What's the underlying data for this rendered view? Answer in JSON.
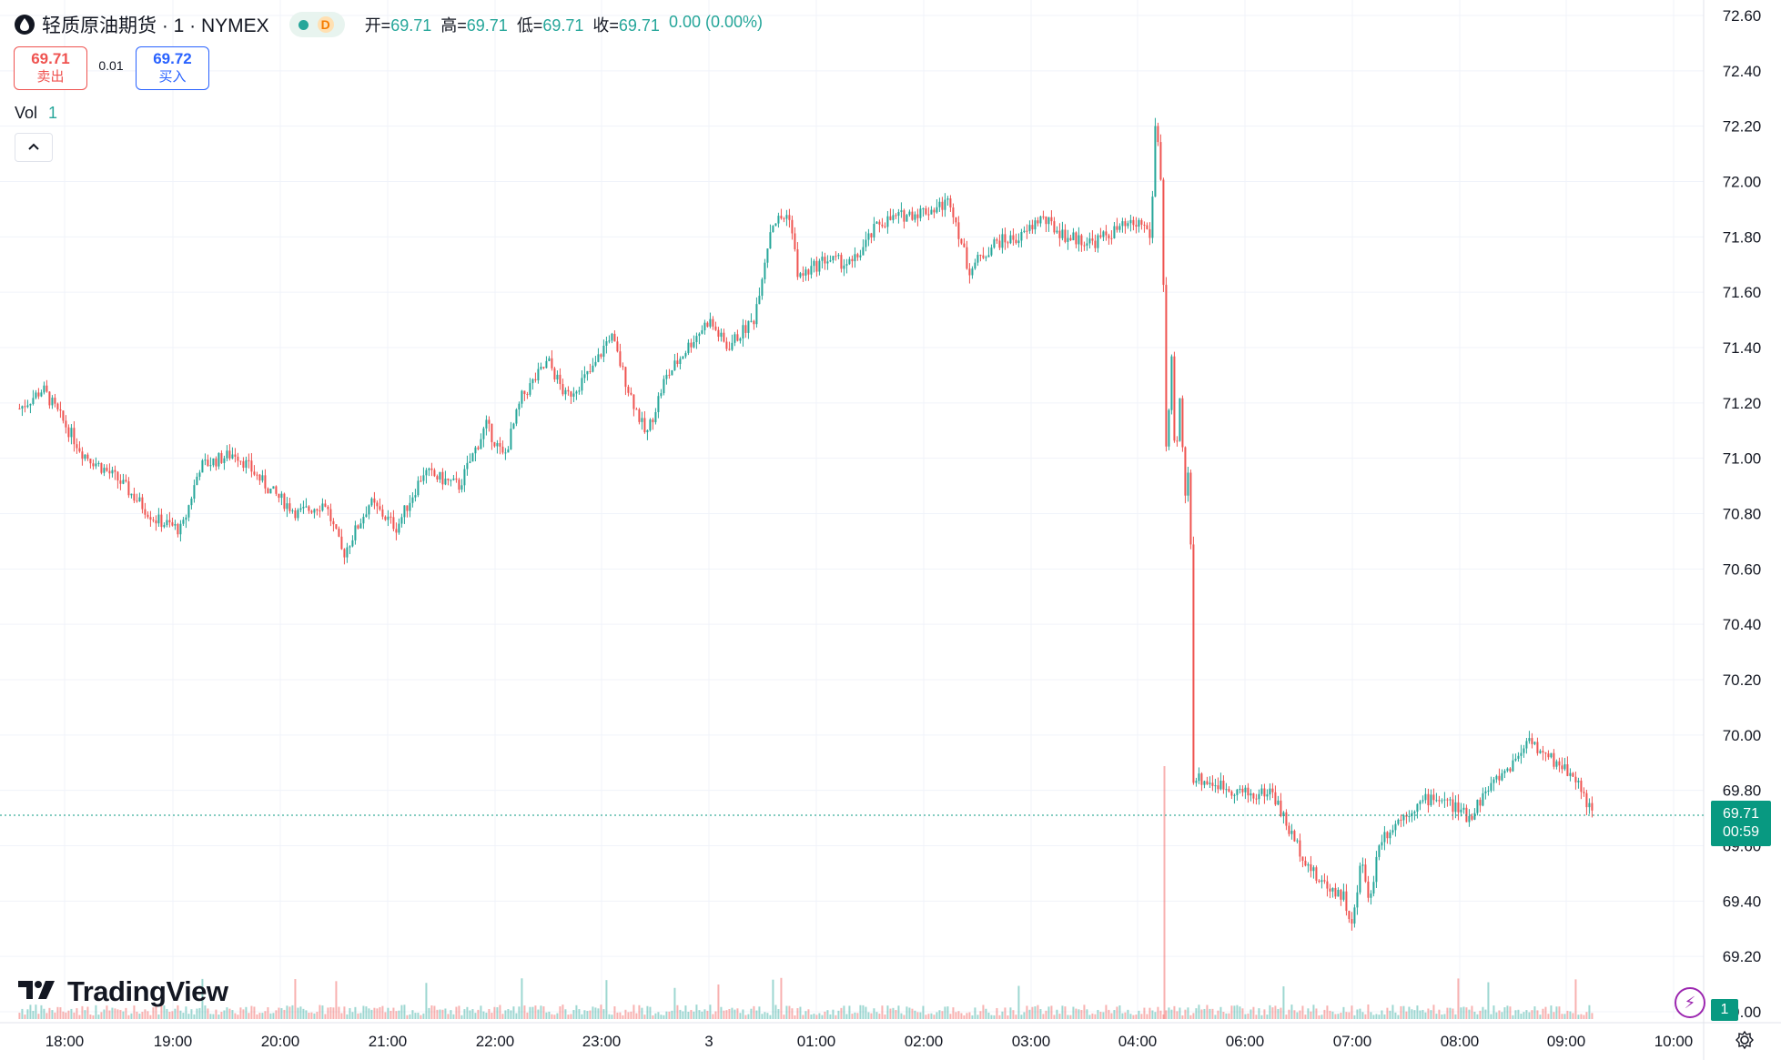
{
  "legend": {
    "symbol": "轻质原油期货 · 1 · NYMEX",
    "badge": "D",
    "open_label": "开=",
    "open": "69.71",
    "high_label": "高=",
    "high": "69.71",
    "low_label": "低=",
    "low": "69.71",
    "close_label": "收=",
    "close": "69.71",
    "change": "0.00 (0.00%)"
  },
  "quote": {
    "sell_price": "69.71",
    "sell_label": "卖出",
    "spread": "0.01",
    "buy_price": "69.72",
    "buy_label": "买入"
  },
  "volume_legend": {
    "label": "Vol",
    "value": "1"
  },
  "watermark": "TradingView",
  "last_price_tag": {
    "price": "69.71",
    "countdown": "00:59"
  },
  "volume_tag": "1",
  "colors": {
    "up": "#26a69a",
    "down": "#ef5350",
    "grid": "#f0f3fa",
    "text": "#131722"
  },
  "icons": [
    "oil-drop-icon",
    "chevron-up-icon",
    "bolt-icon",
    "settings-icon",
    "tradingview-logo-icon"
  ],
  "chart_data": {
    "type": "candlestick",
    "title": "轻质原油期货 · 1 · NYMEX",
    "interval": "1 minute",
    "y_axis_side": "right",
    "y_ticks": [
      "72.60",
      "72.40",
      "72.20",
      "72.00",
      "71.80",
      "71.60",
      "71.40",
      "71.20",
      "71.00",
      "70.80",
      "70.60",
      "70.40",
      "70.20",
      "70.00",
      "69.80",
      "69.60",
      "69.40",
      "69.20",
      "69.00"
    ],
    "ylim": [
      69.0,
      72.6
    ],
    "x_ticks": [
      "18:00",
      "19:00",
      "20:00",
      "21:00",
      "22:00",
      "23:00",
      "3",
      "01:00",
      "02:00",
      "03:00",
      "04:00",
      "06:00",
      "07:00",
      "08:00",
      "09:00",
      "10:00"
    ],
    "last_price": 69.71,
    "grid": true,
    "price_path": [
      {
        "t": "17:35",
        "price": 71.18
      },
      {
        "t": "17:48",
        "price": 71.25
      },
      {
        "t": "18:10",
        "price": 71.02
      },
      {
        "t": "18:30",
        "price": 70.92
      },
      {
        "t": "18:50",
        "price": 70.78
      },
      {
        "t": "19:05",
        "price": 70.74
      },
      {
        "t": "19:15",
        "price": 70.97
      },
      {
        "t": "19:35",
        "price": 71.02
      },
      {
        "t": "19:55",
        "price": 70.88
      },
      {
        "t": "20:10",
        "price": 70.8
      },
      {
        "t": "20:25",
        "price": 70.84
      },
      {
        "t": "20:35",
        "price": 70.65
      },
      {
        "t": "20:50",
        "price": 70.84
      },
      {
        "t": "21:05",
        "price": 70.75
      },
      {
        "t": "21:20",
        "price": 70.95
      },
      {
        "t": "21:40",
        "price": 70.9
      },
      {
        "t": "21:55",
        "price": 71.12
      },
      {
        "t": "22:05",
        "price": 71.0
      },
      {
        "t": "22:15",
        "price": 71.22
      },
      {
        "t": "22:30",
        "price": 71.35
      },
      {
        "t": "22:40",
        "price": 71.22
      },
      {
        "t": "22:55",
        "price": 71.32
      },
      {
        "t": "23:05",
        "price": 71.45
      },
      {
        "t": "23:15",
        "price": 71.25
      },
      {
        "t": "23:25",
        "price": 71.08
      },
      {
        "t": "23:35",
        "price": 71.28
      },
      {
        "t": "23:50",
        "price": 71.42
      },
      {
        "t": "00:00",
        "price": 71.5
      },
      {
        "t": "00:10",
        "price": 71.4
      },
      {
        "t": "00:25",
        "price": 71.5
      },
      {
        "t": "00:35",
        "price": 71.85
      },
      {
        "t": "00:45",
        "price": 71.88
      },
      {
        "t": "00:50",
        "price": 71.65
      },
      {
        "t": "01:05",
        "price": 71.72
      },
      {
        "t": "01:20",
        "price": 71.7
      },
      {
        "t": "01:35",
        "price": 71.85
      },
      {
        "t": "01:50",
        "price": 71.88
      },
      {
        "t": "02:05",
        "price": 71.9
      },
      {
        "t": "02:15",
        "price": 71.93
      },
      {
        "t": "02:25",
        "price": 71.68
      },
      {
        "t": "02:40",
        "price": 71.78
      },
      {
        "t": "02:55",
        "price": 71.8
      },
      {
        "t": "03:05",
        "price": 71.87
      },
      {
        "t": "03:20",
        "price": 71.8
      },
      {
        "t": "03:35",
        "price": 71.78
      },
      {
        "t": "03:50",
        "price": 71.83
      },
      {
        "t": "04:05",
        "price": 71.85
      },
      {
        "t": "04:15",
        "price": 71.8
      },
      {
        "t": "04:20",
        "price": 72.22
      },
      {
        "t": "04:25",
        "price": 72.1
      },
      {
        "t": "04:28",
        "price": 71.8
      },
      {
        "t": "04:30",
        "price": 71.4
      },
      {
        "t": "04:33",
        "price": 70.85
      },
      {
        "t": "04:37",
        "price": 71.45
      },
      {
        "t": "04:42",
        "price": 70.95
      },
      {
        "t": "04:48",
        "price": 71.25
      },
      {
        "t": "04:52",
        "price": 70.85
      },
      {
        "t": "04:57",
        "price": 70.95
      },
      {
        "t": "05:00",
        "price": 70.65
      },
      {
        "t": "05:02",
        "price": 70.35
      },
      {
        "t": "05:08",
        "price": 70.05
      },
      {
        "t": "05:15",
        "price": 70.1
      },
      {
        "t": "05:22",
        "price": 69.9
      },
      {
        "t": "05:30",
        "price": 69.8
      },
      {
        "t": "05:38",
        "price": 69.6
      },
      {
        "t": "05:45",
        "price": 69.72
      },
      {
        "t": "05:55",
        "price": 69.85
      },
      {
        "t": "06:05",
        "price": 69.78
      },
      {
        "t": "06:15",
        "price": 69.8
      },
      {
        "t": "06:25",
        "price": 69.65
      },
      {
        "t": "06:40",
        "price": 69.48
      },
      {
        "t": "06:55",
        "price": 69.42
      },
      {
        "t": "07:00",
        "price": 69.3
      },
      {
        "t": "07:05",
        "price": 69.55
      },
      {
        "t": "07:10",
        "price": 69.4
      },
      {
        "t": "07:15",
        "price": 69.62
      },
      {
        "t": "07:30",
        "price": 69.72
      },
      {
        "t": "07:45",
        "price": 69.78
      },
      {
        "t": "07:55",
        "price": 69.75
      },
      {
        "t": "08:05",
        "price": 69.7
      },
      {
        "t": "08:15",
        "price": 69.8
      },
      {
        "t": "08:30",
        "price": 69.9
      },
      {
        "t": "08:40",
        "price": 70.0
      },
      {
        "t": "08:45",
        "price": 69.93
      },
      {
        "t": "08:55",
        "price": 69.9
      },
      {
        "t": "09:05",
        "price": 69.85
      },
      {
        "t": "09:15",
        "price": 69.71
      }
    ]
  }
}
